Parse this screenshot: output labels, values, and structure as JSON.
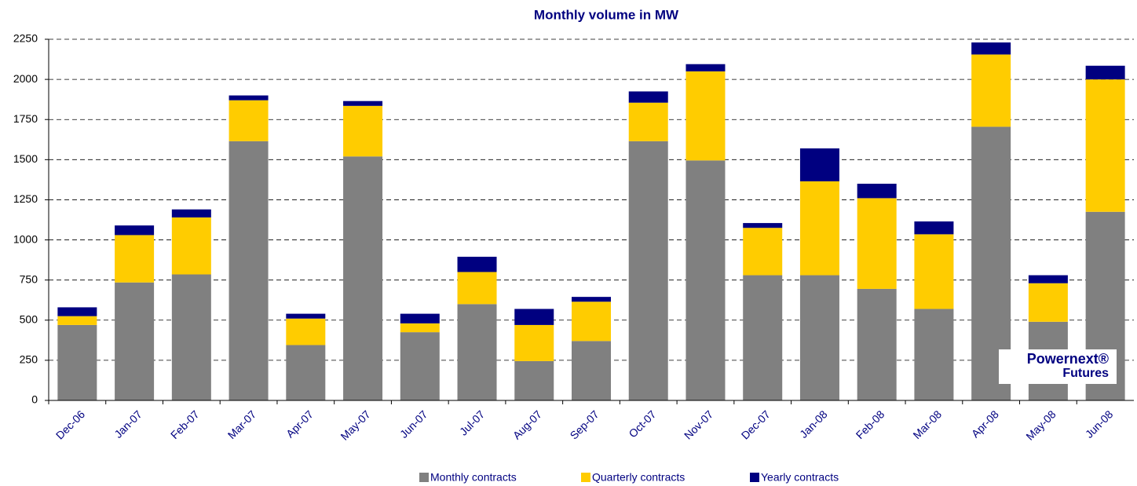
{
  "chart_data": {
    "type": "stacked_bar",
    "title": "Monthly volume in MW",
    "categories": [
      "Dec-06",
      "Jan-07",
      "Feb-07",
      "Mar-07",
      "Apr-07",
      "May-07",
      "Jun-07",
      "Jul-07",
      "Aug-07",
      "Sep-07",
      "Oct-07",
      "Nov-07",
      "Dec-07",
      "Jan-08",
      "Feb-08",
      "Mar-08",
      "Apr-08",
      "May-08",
      "Jun-08"
    ],
    "series": [
      {
        "name": "Monthly contracts",
        "color": "#808080",
        "values": [
          470,
          735,
          785,
          1615,
          345,
          1520,
          425,
          600,
          245,
          370,
          1615,
          1495,
          780,
          780,
          695,
          570,
          1705,
          490,
          1175
        ]
      },
      {
        "name": "Quarterly contracts",
        "color": "#ffcc00",
        "values": [
          55,
          295,
          355,
          255,
          165,
          315,
          55,
          200,
          225,
          245,
          240,
          555,
          295,
          585,
          565,
          465,
          450,
          240,
          825
        ]
      },
      {
        "name": "Yearly contracts",
        "color": "#000080",
        "values": [
          55,
          60,
          50,
          30,
          30,
          30,
          60,
          95,
          100,
          30,
          70,
          45,
          30,
          205,
          90,
          80,
          75,
          50,
          85
        ]
      }
    ],
    "ylim": [
      0,
      2250
    ],
    "yticks": [
      0,
      250,
      500,
      750,
      1000,
      1250,
      1500,
      1750,
      2000,
      2250
    ],
    "grid": true,
    "logo": {
      "line1": "Powernext®",
      "line2": "Futures"
    }
  }
}
